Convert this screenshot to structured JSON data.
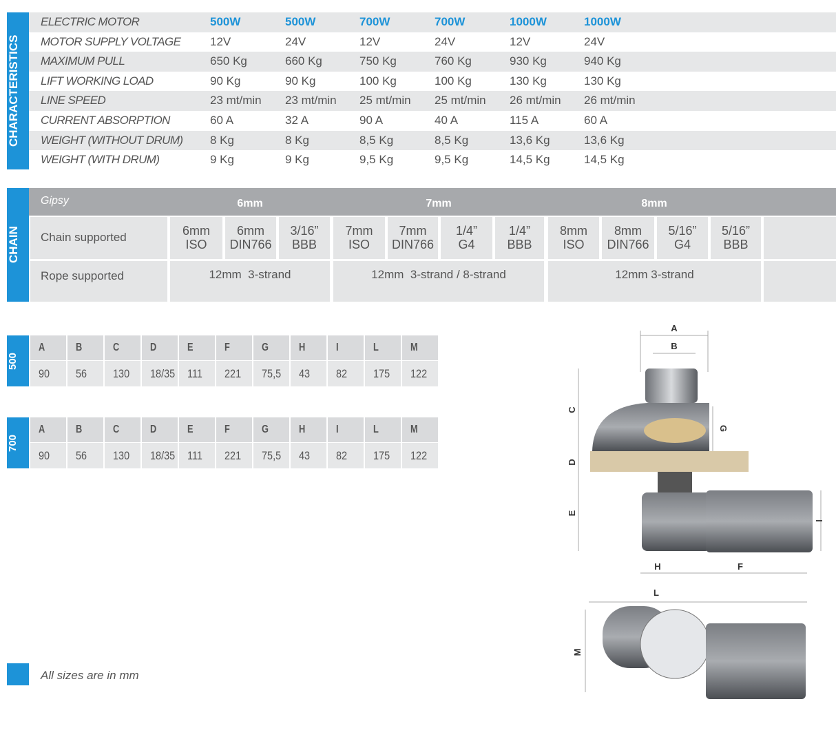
{
  "characteristics": {
    "section_label": "CHARACTERISTICS",
    "rows": [
      [
        "ELECTRIC MOTOR",
        "500W",
        "500W",
        "700W",
        "700W",
        "1000W",
        "1000W"
      ],
      [
        "MOTOR SUPPLY VOLTAGE",
        "12V",
        "24V",
        "12V",
        "24V",
        "12V",
        "24V"
      ],
      [
        "MAXIMUM PULL",
        "650 Kg",
        "660 Kg",
        "750 Kg",
        "760 Kg",
        "930 Kg",
        "940 Kg"
      ],
      [
        "LIFT WORKING LOAD",
        "90 Kg",
        "90 Kg",
        "100 Kg",
        "100 Kg",
        "130 Kg",
        "130 Kg"
      ],
      [
        "LINE SPEED",
        "23 mt/min",
        "23 mt/min",
        "25 mt/min",
        "25 mt/min",
        "26 mt/min",
        "26 mt/min"
      ],
      [
        "CURRENT ABSORPTION",
        "60 A",
        "32 A",
        "90 A",
        "40 A",
        "115 A",
        "60 A"
      ],
      [
        "WEIGHT (WITHOUT DRUM)",
        "8 Kg",
        "8 Kg",
        "8,5 Kg",
        "8,5 Kg",
        "13,6 Kg",
        "13,6 Kg"
      ],
      [
        "WEIGHT (WITH DRUM)",
        "9 Kg",
        "9 Kg",
        "9,5 Kg",
        "9,5 Kg",
        "14,5 Kg",
        "14,5 Kg"
      ]
    ]
  },
  "chain": {
    "section_label": "CHAIN",
    "header": [
      "Gipsy",
      "6mm",
      "7mm",
      "8mm"
    ],
    "chain_supported": {
      "label": "Chain supported",
      "items": [
        [
          "6mm",
          "ISO"
        ],
        [
          "6mm",
          "DIN766"
        ],
        [
          "3/16”",
          "BBB"
        ],
        [
          "7mm",
          "ISO"
        ],
        [
          "7mm",
          "DIN766"
        ],
        [
          "1/4”",
          "G4"
        ],
        [
          "1/4”",
          "BBB"
        ],
        [
          "8mm",
          "ISO"
        ],
        [
          "8mm",
          "DIN766"
        ],
        [
          "5/16”",
          "G4"
        ],
        [
          "5/16”",
          "BBB"
        ]
      ]
    },
    "rope_supported": {
      "label": "Rope supported",
      "items": [
        "12mm  3-strand",
        "12mm  3-strand / 8-strand",
        "12mm 3-strand"
      ]
    }
  },
  "dimensions": [
    {
      "model": "500",
      "headers": [
        "A",
        "B",
        "C",
        "D",
        "E",
        "F",
        "G",
        "H",
        "I",
        "L",
        "M"
      ],
      "values": [
        "90",
        "56",
        "130",
        "18/35",
        "111",
        "221",
        "75,5",
        "43",
        "82",
        "175",
        "122"
      ]
    },
    {
      "model": "700",
      "headers": [
        "A",
        "B",
        "C",
        "D",
        "E",
        "F",
        "G",
        "H",
        "I",
        "L",
        "M"
      ],
      "values": [
        "90",
        "56",
        "130",
        "18/35",
        "111",
        "221",
        "75,5",
        "43",
        "82",
        "175",
        "122"
      ]
    }
  ],
  "note": "All sizes are in mm",
  "drawing_labels": [
    "A",
    "B",
    "C",
    "D",
    "E",
    "F",
    "G",
    "H",
    "I",
    "L",
    "M"
  ]
}
